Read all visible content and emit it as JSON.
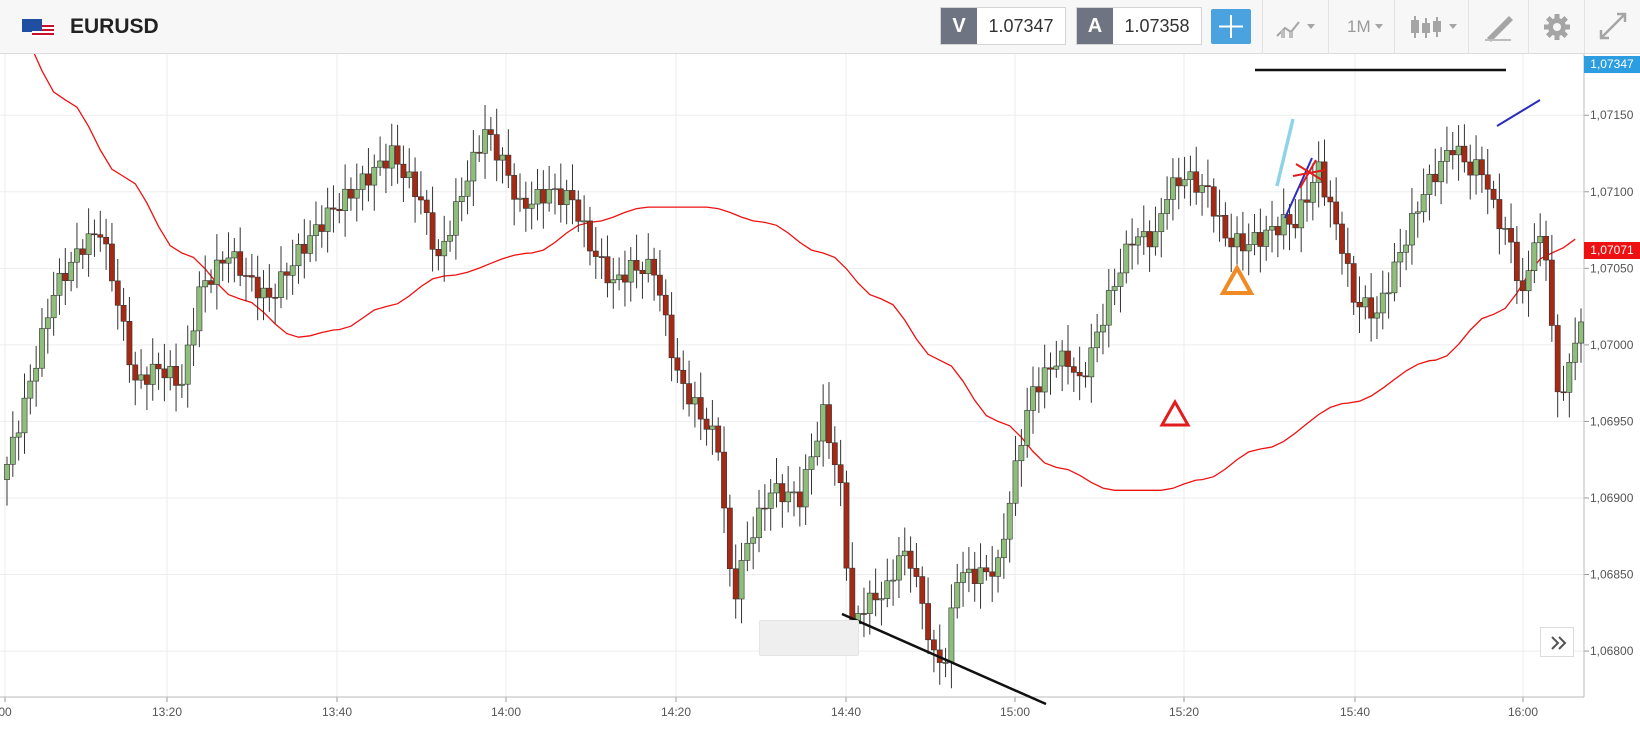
{
  "toolbar": {
    "symbol": "EURUSD",
    "sell": {
      "label": "V",
      "value": "1.07347"
    },
    "buy": {
      "label": "A",
      "value": "1.07358"
    },
    "timeframe": "1M",
    "icons": [
      "crosshair-icon",
      "chart-type-icon",
      "candlestick-icon",
      "drawing-pencil-icon",
      "gear-icon",
      "fullscreen-icon"
    ]
  },
  "chart_data": {
    "type": "candlestick",
    "title": "",
    "xlabel": "",
    "ylabel": "",
    "ylim": [
      1.0677,
      1.0719
    ],
    "grid": true,
    "x_ticks": [
      "00",
      "13:20",
      "13:40",
      "14:00",
      "14:20",
      "14:40",
      "15:00",
      "15:20",
      "15:40",
      "16:00"
    ],
    "y_ticks": [
      "1,07150",
      "1,07100",
      "1,07050",
      "1,07000",
      "1,06950",
      "1,06900",
      "1,06850",
      "1,06800"
    ],
    "last_price_label": "1,07347",
    "ma_label": "1,07071",
    "colors": {
      "up": "#8ebd7c",
      "down": "#a52a15",
      "ma": "#ee1111",
      "last_price": "#2b9de0",
      "ma_tag": "#ee1111",
      "accent": "#4aa3df"
    }
  }
}
